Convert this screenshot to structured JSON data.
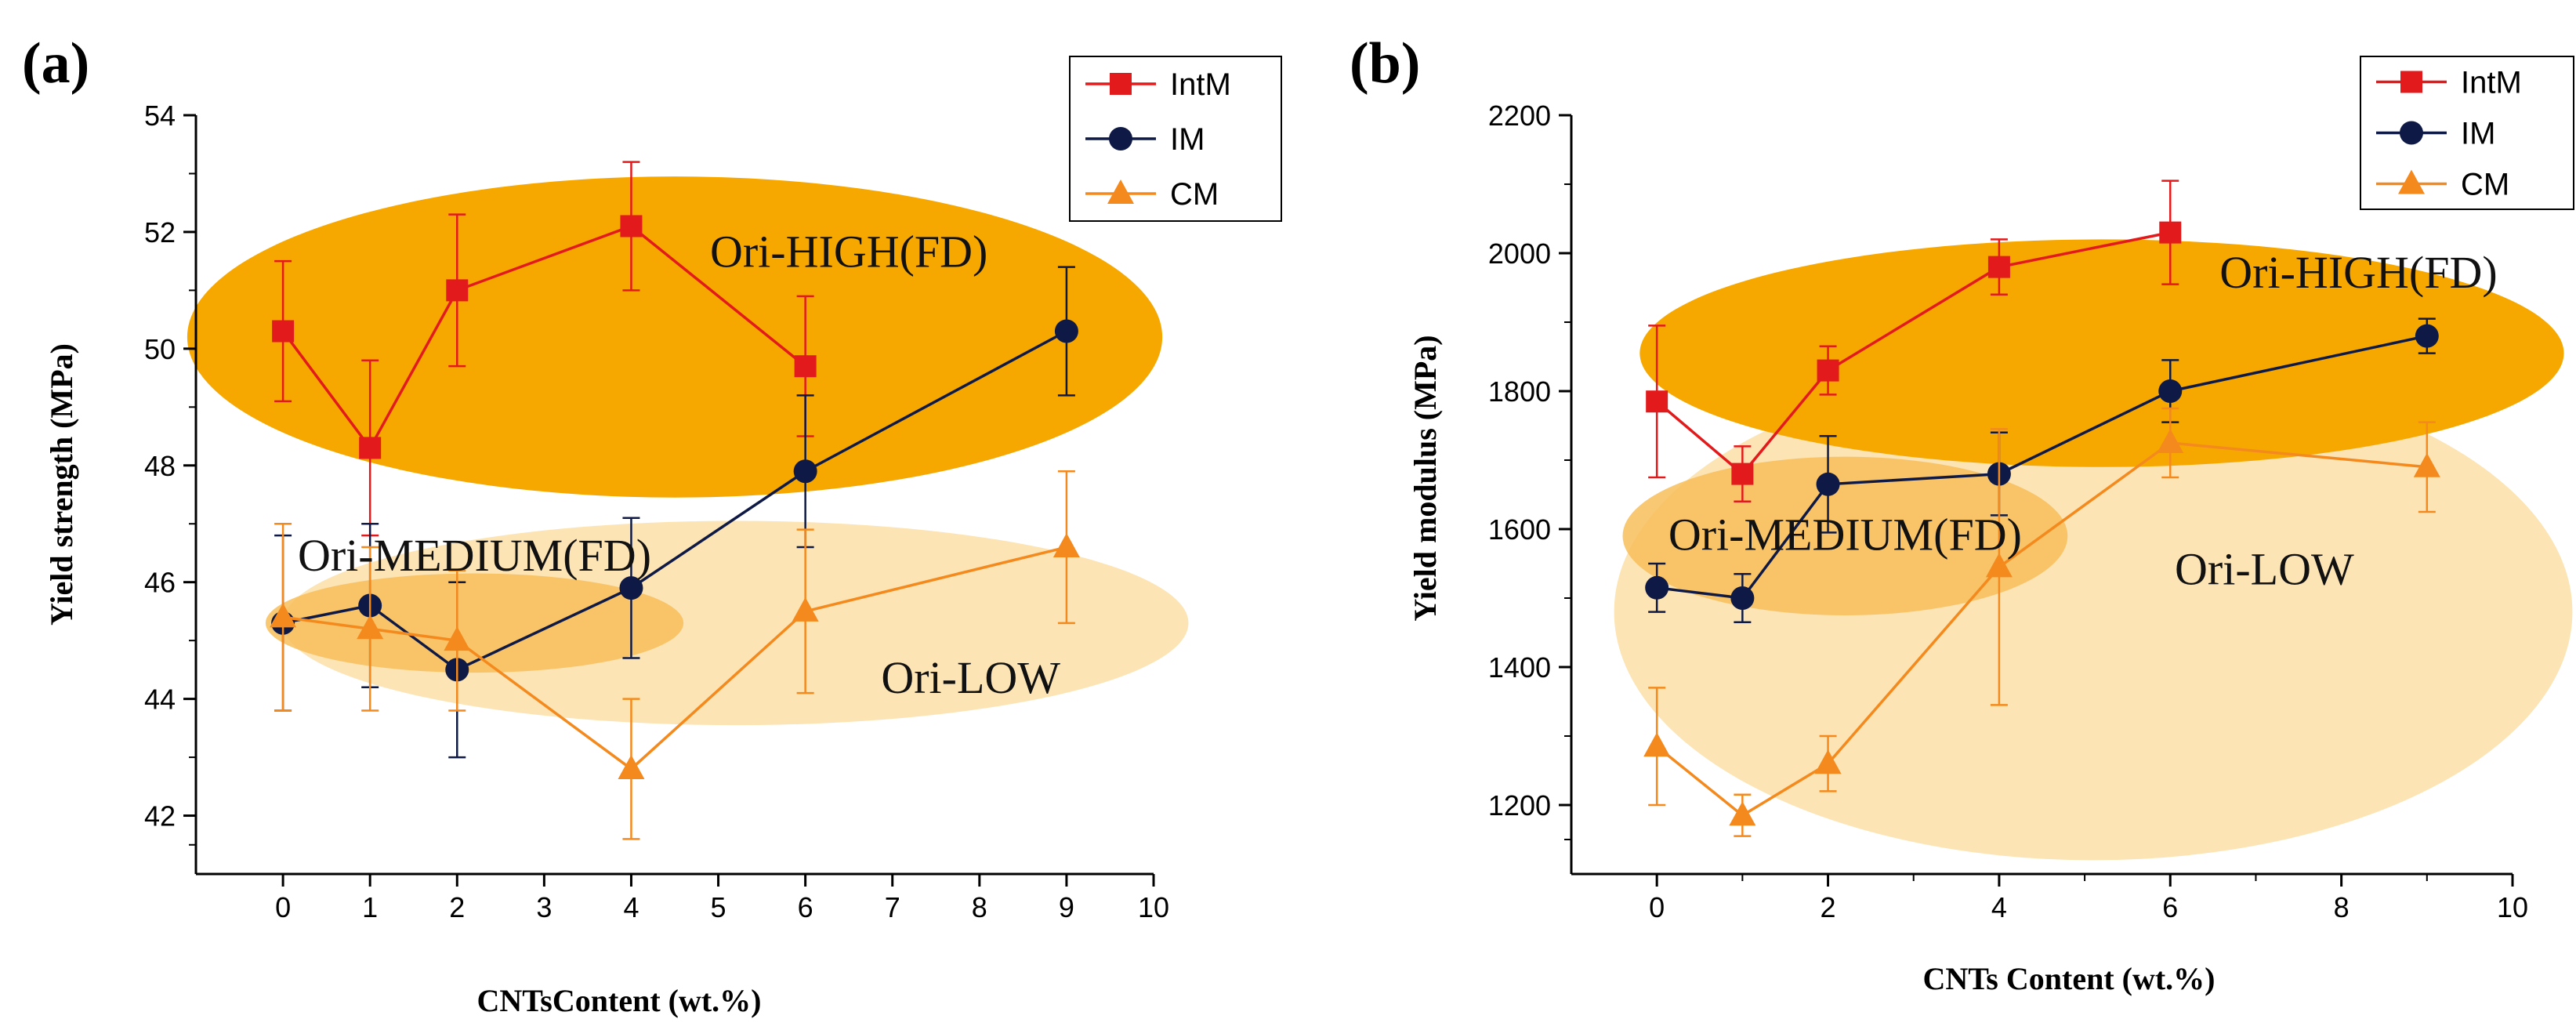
{
  "chart_data": [
    {
      "panel": "(a)",
      "type": "line",
      "xlabel": "CNTsContent (wt.%)",
      "ylabel": "Yield strength (MPa)",
      "xlim": [
        -1,
        10
      ],
      "ylim": [
        41,
        54
      ],
      "x_ticks": [
        0,
        1,
        2,
        3,
        4,
        5,
        6,
        7,
        8,
        9,
        10
      ],
      "y_ticks": [
        42,
        44,
        46,
        48,
        50,
        52,
        54
      ],
      "legend_position": "top-right",
      "series": [
        {
          "name": "IntM",
          "color": "#e31a1c",
          "marker": "square",
          "points": [
            {
              "x": 0,
              "y": 50.3,
              "err": 1.2
            },
            {
              "x": 1,
              "y": 48.3,
              "err": 1.5
            },
            {
              "x": 2,
              "y": 51.0,
              "err": 1.3
            },
            {
              "x": 4,
              "y": 52.1,
              "err": 1.1
            },
            {
              "x": 6,
              "y": 49.7,
              "err": 1.2
            }
          ]
        },
        {
          "name": "IM",
          "color": "#0e1a45",
          "marker": "circle",
          "points": [
            {
              "x": 0,
              "y": 45.3,
              "err": 1.5
            },
            {
              "x": 1,
              "y": 45.6,
              "err": 1.4
            },
            {
              "x": 2,
              "y": 44.5,
              "err": 1.5
            },
            {
              "x": 4,
              "y": 45.9,
              "err": 1.2
            },
            {
              "x": 6,
              "y": 47.9,
              "err": 1.3
            },
            {
              "x": 9,
              "y": 50.3,
              "err": 1.1
            }
          ]
        },
        {
          "name": "CM",
          "color": "#f48a1e",
          "marker": "triangle",
          "points": [
            {
              "x": 0,
              "y": 45.4,
              "err": 1.6
            },
            {
              "x": 1,
              "y": 45.2,
              "err": 1.4
            },
            {
              "x": 2,
              "y": 45.0,
              "err": 1.2
            },
            {
              "x": 4,
              "y": 42.8,
              "err": 1.2
            },
            {
              "x": 6,
              "y": 45.5,
              "err": 1.4
            },
            {
              "x": 9,
              "y": 46.6,
              "err": 1.3
            }
          ]
        }
      ],
      "regions": [
        {
          "label": "Ori-HIGH(FD)",
          "intensity": "high",
          "color": "#f6a800",
          "center": [
            4.5,
            50.2
          ],
          "radius": [
            5.6,
            2.75
          ],
          "label_at": [
            6.5,
            51.4
          ]
        },
        {
          "label": "Ori-MEDIUM(FD)",
          "intensity": "medium",
          "color": "#f8be5a",
          "center": [
            2.2,
            45.3
          ],
          "radius": [
            2.4,
            0.85
          ],
          "label_at": [
            2.2,
            46.2
          ]
        },
        {
          "label": "Ori-LOW",
          "intensity": "low",
          "color": "#fce4b4",
          "center": [
            5.2,
            45.3
          ],
          "radius": [
            5.2,
            1.75
          ],
          "label_at": [
            7.9,
            44.1
          ]
        }
      ]
    },
    {
      "panel": "(b)",
      "type": "line",
      "xlabel": "CNTs Content (wt.%)",
      "ylabel": "Yield modulus (MPa)",
      "xlim": [
        -1,
        10
      ],
      "ylim": [
        1100,
        2200
      ],
      "x_ticks": [
        0,
        2,
        4,
        6,
        8,
        10
      ],
      "y_ticks": [
        1200,
        1400,
        1600,
        1800,
        2000,
        2200
      ],
      "legend_position": "top-right",
      "series": [
        {
          "name": "IntM",
          "color": "#e31a1c",
          "marker": "square",
          "points": [
            {
              "x": 0,
              "y": 1785,
              "err": 110
            },
            {
              "x": 1,
              "y": 1680,
              "err": 40
            },
            {
              "x": 2,
              "y": 1830,
              "err": 35
            },
            {
              "x": 4,
              "y": 1980,
              "err": 40
            },
            {
              "x": 6,
              "y": 2030,
              "err": 75
            }
          ]
        },
        {
          "name": "IM",
          "color": "#0e1a45",
          "marker": "circle",
          "points": [
            {
              "x": 0,
              "y": 1515,
              "err": 35
            },
            {
              "x": 1,
              "y": 1500,
              "err": 35
            },
            {
              "x": 2,
              "y": 1665,
              "err": 70
            },
            {
              "x": 4,
              "y": 1680,
              "err": 60
            },
            {
              "x": 6,
              "y": 1800,
              "err": 45
            },
            {
              "x": 9,
              "y": 1880,
              "err": 25
            }
          ]
        },
        {
          "name": "CM",
          "color": "#f48a1e",
          "marker": "triangle",
          "points": [
            {
              "x": 0,
              "y": 1285,
              "err": 85
            },
            {
              "x": 1,
              "y": 1185,
              "err": 30
            },
            {
              "x": 2,
              "y": 1260,
              "err": 40
            },
            {
              "x": 4,
              "y": 1545,
              "err": 200
            },
            {
              "x": 6,
              "y": 1725,
              "err": 50
            },
            {
              "x": 9,
              "y": 1690,
              "err": 65
            }
          ]
        }
      ],
      "regions": [
        {
          "label": "Ori-HIGH(FD)",
          "intensity": "high",
          "color": "#f6a800",
          "center": [
            5.2,
            1855
          ],
          "radius": [
            5.4,
            165
          ],
          "label_at": [
            8.2,
            1950
          ]
        },
        {
          "label": "Ori-MEDIUM(FD)",
          "intensity": "medium",
          "color": "#f8be5a",
          "center": [
            2.2,
            1590
          ],
          "radius": [
            2.6,
            115
          ],
          "label_at": [
            2.2,
            1570
          ]
        },
        {
          "label": "Ori-LOW",
          "intensity": "low",
          "color": "#fce4b4",
          "center": [
            5.1,
            1480
          ],
          "radius": [
            5.6,
            360
          ],
          "label_at": [
            7.1,
            1520
          ]
        }
      ]
    }
  ]
}
